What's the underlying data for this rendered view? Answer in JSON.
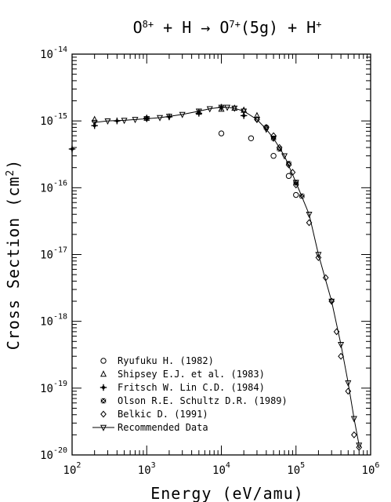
{
  "chart_data": {
    "type": "scatter",
    "title_parts": [
      "O",
      "8+",
      " + H → O",
      "7+",
      "(5g) + H",
      "+"
    ],
    "xlabel": "Energy (eV/amu)",
    "ylabel_parts": [
      "Cross Section (cm",
      "2",
      ")"
    ],
    "xscale": "log",
    "yscale": "log",
    "xlim": [
      100,
      1000000
    ],
    "ylim": [
      1e-20,
      1e-14
    ],
    "grid": false,
    "legend_position": "bottom-left",
    "x_tick_labels": [
      {
        "base": "10",
        "exp": "2",
        "value": 100
      },
      {
        "base": "10",
        "exp": "3",
        "value": 1000
      },
      {
        "base": "10",
        "exp": "4",
        "value": 10000
      },
      {
        "base": "10",
        "exp": "5",
        "value": 100000
      },
      {
        "base": "10",
        "exp": "6",
        "value": 1000000
      }
    ],
    "y_tick_labels": [
      {
        "base": "10",
        "exp": "-20",
        "value": 1e-20
      },
      {
        "base": "10",
        "exp": "-19",
        "value": 1e-19
      },
      {
        "base": "10",
        "exp": "-18",
        "value": 1e-18
      },
      {
        "base": "10",
        "exp": "-17",
        "value": 1e-17
      },
      {
        "base": "10",
        "exp": "-16",
        "value": 1e-16
      },
      {
        "base": "10",
        "exp": "-15",
        "value": 1e-15
      },
      {
        "base": "10",
        "exp": "-14",
        "value": 1e-14
      }
    ],
    "series": [
      {
        "name": "Ryufuku H. (1982)",
        "marker": "circle",
        "x": [
          10000,
          25000,
          50000,
          80000,
          100000
        ],
        "y": [
          6.5e-16,
          5.5e-16,
          3e-16,
          1.5e-16,
          7.8e-17
        ]
      },
      {
        "name": "Shipsey E.J. et al. (1983)",
        "marker": "triangle",
        "x": [
          200,
          1000,
          5000,
          10000,
          15000,
          20000,
          30000
        ],
        "y": [
          1.05e-15,
          1.1e-15,
          1.35e-15,
          1.5e-15,
          1.55e-15,
          1.45e-15,
          1.2e-15
        ]
      },
      {
        "name": "Fritsch W. Lin C.D. (1984)",
        "marker": "plus",
        "x": [
          100,
          200,
          400,
          1000,
          2000,
          5000,
          10000,
          20000
        ],
        "y": [
          3.8e-16,
          8.5e-16,
          1e-15,
          1.1e-15,
          1.15e-15,
          1.3e-15,
          1.6e-15,
          1.2e-15
        ]
      },
      {
        "name": "Olson R.E. Schultz D.R. (1989)",
        "marker": "boxx",
        "x": [
          40000,
          50000,
          60000,
          80000,
          100000,
          120000
        ],
        "y": [
          8e-16,
          5.5e-16,
          3.8e-16,
          2.3e-16,
          1.2e-16,
          7.5e-17
        ]
      },
      {
        "name": "Belkic D. (1991)",
        "marker": "diamond",
        "x": [
          30000,
          40000,
          50000,
          60000,
          80000,
          90000,
          100000,
          150000,
          200000,
          250000,
          300000,
          350000,
          400000,
          500000,
          600000,
          700000
        ],
        "y": [
          1.05e-15,
          8e-16,
          6e-16,
          4e-16,
          2.2e-16,
          1.7e-16,
          1.1e-16,
          3e-17,
          9e-18,
          4.5e-18,
          2e-18,
          7e-19,
          3e-19,
          9e-20,
          2e-20,
          1.3e-20
        ]
      },
      {
        "name": "Recommended Data",
        "marker": "down-triangle",
        "line": true,
        "x": [
          200,
          300,
          500,
          700,
          1000,
          1500,
          2000,
          3000,
          5000,
          7000,
          10000,
          12000,
          15000,
          20000,
          30000,
          40000,
          50000,
          70000,
          100000,
          150000,
          200000,
          300000,
          400000,
          500000,
          600000,
          700000
        ],
        "y": [
          9.5e-16,
          1e-15,
          1.02e-15,
          1.05e-15,
          1.08e-15,
          1.12e-15,
          1.17e-15,
          1.25e-15,
          1.4e-15,
          1.52e-15,
          1.6e-15,
          1.6e-15,
          1.55e-15,
          1.4e-15,
          1.05e-15,
          7.5e-16,
          5.5e-16,
          3e-16,
          1.2e-16,
          4e-17,
          1e-17,
          2e-18,
          4.5e-19,
          1.2e-19,
          3.5e-20,
          1.4e-20
        ]
      }
    ]
  }
}
